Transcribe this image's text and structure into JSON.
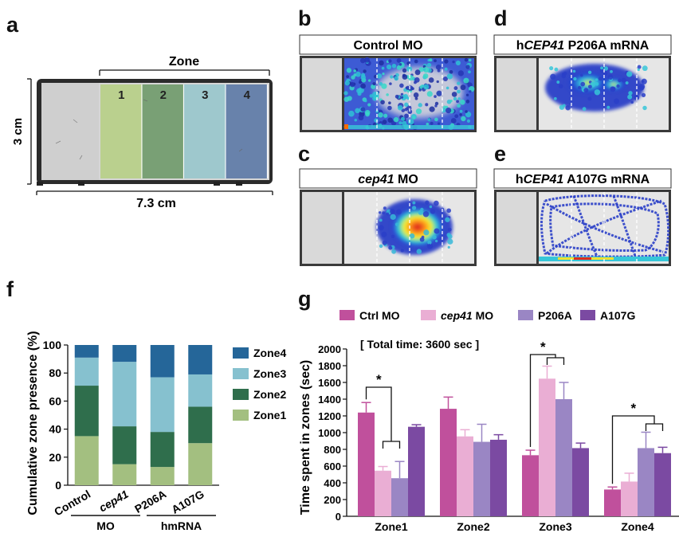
{
  "panel_labels": {
    "a": "a",
    "b": "b",
    "c": "c",
    "d": "d",
    "e": "e",
    "f": "f",
    "g": "g"
  },
  "panel_a": {
    "zone_title": "Zone",
    "zones": [
      "1",
      "2",
      "3",
      "4"
    ],
    "zone_colors": [
      "#b7cf86",
      "#6f9a6a",
      "#98c6cc",
      "#5c79a6"
    ],
    "height_label": "3 cm",
    "width_label": "7.3 cm"
  },
  "heatmaps": {
    "b": {
      "title_prefix": "",
      "title_italic": "",
      "title_suffix": "Control MO"
    },
    "c": {
      "title_prefix": "",
      "title_italic": "cep41",
      "title_suffix": " MO"
    },
    "d": {
      "title_prefix": "h",
      "title_italic": "CEP41",
      "title_suffix": " P206A mRNA"
    },
    "e": {
      "title_prefix": "h",
      "title_italic": "CEP41",
      "title_suffix": " A107G mRNA"
    }
  },
  "chart_data": [
    {
      "type": "bar",
      "stacked": true,
      "panel": "f",
      "ylabel": "Cumulative zone presence (%)",
      "ylim": [
        0,
        100
      ],
      "yticks": [
        0,
        20,
        40,
        60,
        80,
        100
      ],
      "categories": [
        "Control",
        "cep41",
        "P206A",
        "A107G"
      ],
      "category_italic": [
        false,
        true,
        false,
        false
      ],
      "groups": [
        {
          "label": "MO",
          "categories": [
            "Control",
            "cep41"
          ]
        },
        {
          "label": "hmRNA",
          "categories": [
            "P206A",
            "A107G"
          ]
        }
      ],
      "series": [
        {
          "name": "Zone1",
          "color": "#a3bf80",
          "values": [
            35,
            15,
            13,
            30
          ]
        },
        {
          "name": "Zone2",
          "color": "#2f6e4c",
          "values": [
            36,
            27,
            25,
            26
          ]
        },
        {
          "name": "Zone3",
          "color": "#86c1cf",
          "values": [
            20,
            46,
            39,
            23
          ]
        },
        {
          "name": "Zone4",
          "color": "#256699",
          "values": [
            9,
            12,
            23,
            21
          ]
        }
      ],
      "legend": "right"
    },
    {
      "type": "bar",
      "panel": "g",
      "annotation": "[ Total time: 3600 sec ]",
      "ylabel": "Time spent in zones (sec)",
      "ylim": [
        0,
        2000
      ],
      "yticks": [
        0,
        200,
        400,
        600,
        800,
        1000,
        1200,
        1400,
        1600,
        1800,
        2000
      ],
      "categories": [
        "Zone1",
        "Zone2",
        "Zone3",
        "Zone4"
      ],
      "series": [
        {
          "name_prefix": "Ctrl MO",
          "name_italic": "",
          "name_suffix": "",
          "color": "#c0509c",
          "values": [
            1240,
            1285,
            730,
            320
          ],
          "errors": [
            120,
            140,
            60,
            30
          ]
        },
        {
          "name_prefix": "",
          "name_italic": "cep41",
          "name_suffix": " MO",
          "color": "#eaaed4",
          "values": [
            545,
            955,
            1645,
            415
          ],
          "errors": [
            50,
            80,
            150,
            100
          ]
        },
        {
          "name_prefix": "P206A",
          "name_italic": "",
          "name_suffix": "",
          "color": "#9a86c4",
          "values": [
            455,
            890,
            1400,
            815
          ],
          "errors": [
            200,
            210,
            200,
            190
          ]
        },
        {
          "name_prefix": "A107G",
          "name_italic": "",
          "name_suffix": "",
          "color": "#7b4aa2",
          "values": [
            1070,
            915,
            815,
            755
          ],
          "errors": [
            25,
            60,
            60,
            70
          ]
        }
      ],
      "significance": [
        {
          "category": "Zone1",
          "label": "*"
        },
        {
          "category": "Zone3",
          "label": "*"
        },
        {
          "category": "Zone4",
          "label": "*"
        }
      ],
      "legend": "top"
    }
  ]
}
